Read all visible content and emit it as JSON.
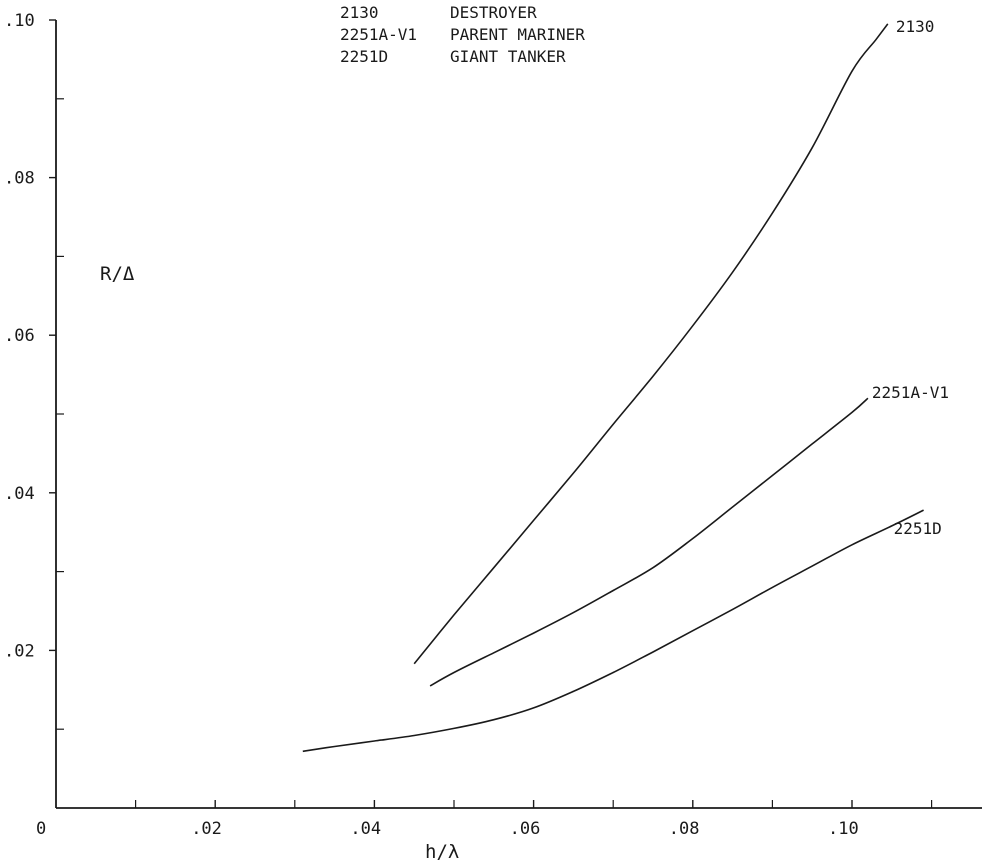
{
  "chart_data": {
    "type": "line",
    "xlabel": "h/λ",
    "ylabel": "R/Δ",
    "xlim": [
      0,
      0.117
    ],
    "ylim": [
      0,
      0.1
    ],
    "x_ticks": [
      {
        "value": 0,
        "label": "0"
      },
      {
        "value": 0.02,
        "label": ".02"
      },
      {
        "value": 0.04,
        "label": ".04"
      },
      {
        "value": 0.06,
        "label": ".06"
      },
      {
        "value": 0.08,
        "label": ".08"
      },
      {
        "value": 0.1,
        "label": ".10"
      }
    ],
    "x_minor_ticks": [
      0.01,
      0.03,
      0.05,
      0.07,
      0.09,
      0.11
    ],
    "y_ticks": [
      {
        "value": 0.02,
        "label": ".02"
      },
      {
        "value": 0.04,
        "label": ".04"
      },
      {
        "value": 0.06,
        "label": ".06"
      },
      {
        "value": 0.08,
        "label": ".08"
      },
      {
        "value": 0.1,
        "label": ".10"
      }
    ],
    "y_minor_ticks": [
      0.01,
      0.03,
      0.05,
      0.07,
      0.09
    ],
    "grid": false,
    "legend": {
      "placement": "top-center",
      "entries": [
        {
          "code": "2130",
          "description": "DESTROYER"
        },
        {
          "code": "2251A-V1",
          "description": "PARENT MARINER"
        },
        {
          "code": "2251D",
          "description": "GIANT TANKER"
        }
      ]
    },
    "series": [
      {
        "name": "2130",
        "x": [
          0.045,
          0.05,
          0.055,
          0.06,
          0.065,
          0.07,
          0.075,
          0.08,
          0.085,
          0.09,
          0.095,
          0.1,
          0.103,
          0.1045
        ],
        "y": [
          0.0183,
          0.0245,
          0.0305,
          0.0365,
          0.0425,
          0.0487,
          0.0548,
          0.0612,
          0.068,
          0.0755,
          0.0838,
          0.0935,
          0.0975,
          0.0995
        ]
      },
      {
        "name": "2251A-V1",
        "x": [
          0.047,
          0.05,
          0.055,
          0.06,
          0.065,
          0.07,
          0.075,
          0.08,
          0.085,
          0.09,
          0.095,
          0.1,
          0.102
        ],
        "y": [
          0.0155,
          0.0172,
          0.0197,
          0.0222,
          0.0248,
          0.0276,
          0.0305,
          0.0342,
          0.0382,
          0.0422,
          0.0462,
          0.0502,
          0.052
        ]
      },
      {
        "name": "2251D",
        "x": [
          0.031,
          0.035,
          0.04,
          0.045,
          0.05,
          0.055,
          0.06,
          0.065,
          0.07,
          0.075,
          0.08,
          0.085,
          0.09,
          0.095,
          0.1,
          0.105,
          0.109
        ],
        "y": [
          0.0072,
          0.0078,
          0.0085,
          0.0092,
          0.0101,
          0.0112,
          0.0127,
          0.0148,
          0.0172,
          0.0198,
          0.0225,
          0.0252,
          0.028,
          0.0307,
          0.0334,
          0.0358,
          0.0378
        ]
      }
    ]
  }
}
